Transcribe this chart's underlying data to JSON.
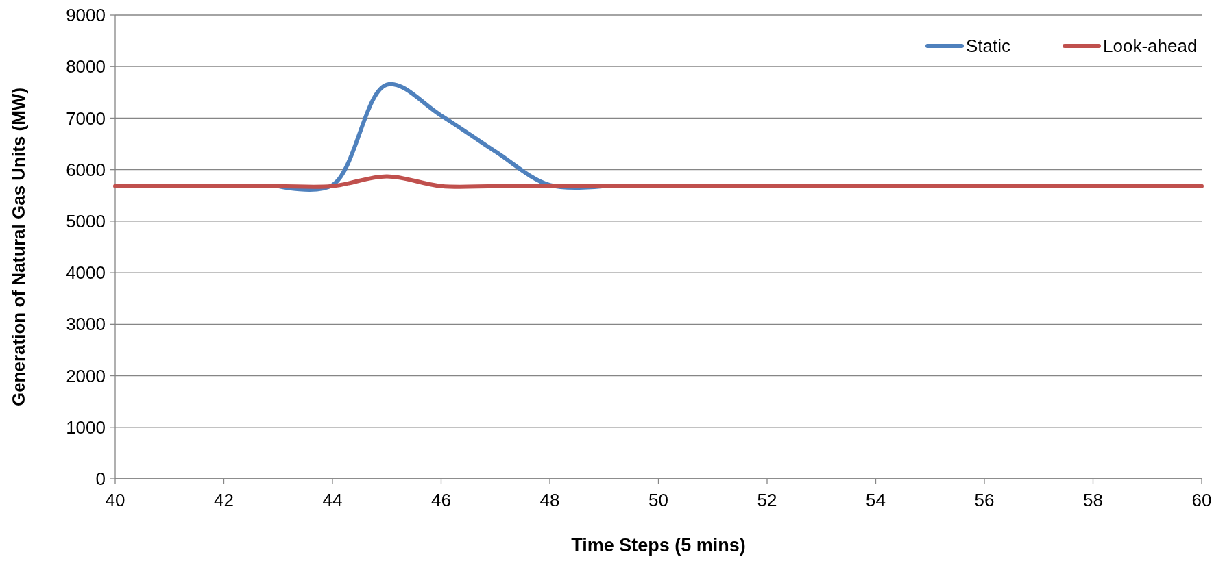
{
  "chart_data": {
    "type": "line",
    "xlabel": "Time Steps (5 mins)",
    "ylabel": "Generation of Natural Gas Units (MW)",
    "x": [
      40,
      41,
      42,
      43,
      44,
      45,
      46,
      47,
      48,
      49,
      50,
      51,
      52,
      53,
      54,
      55,
      56,
      57,
      58,
      59,
      60
    ],
    "series": [
      {
        "name": "Static",
        "color": "#4f81bd",
        "values": [
          null,
          null,
          null,
          5680,
          5700,
          7650,
          7050,
          6350,
          5700,
          5680,
          null,
          null,
          null,
          null,
          null,
          null,
          null,
          null,
          null,
          null,
          null
        ]
      },
      {
        "name": "Look-ahead",
        "color": "#c0504d",
        "values": [
          5680,
          5680,
          5680,
          5680,
          5680,
          5870,
          5680,
          5680,
          5680,
          5680,
          5680,
          5680,
          5680,
          5680,
          5680,
          5680,
          5680,
          5680,
          5680,
          5680,
          5680
        ]
      }
    ],
    "xlim": [
      40,
      60
    ],
    "xticks": [
      40,
      42,
      44,
      46,
      48,
      50,
      52,
      54,
      56,
      58,
      60
    ],
    "ylim": [
      0,
      9000
    ],
    "yticks": [
      0,
      1000,
      2000,
      3000,
      4000,
      5000,
      6000,
      7000,
      8000,
      9000
    ],
    "grid": "y",
    "legend": "top right",
    "marker": "none",
    "line_style": "solid"
  }
}
